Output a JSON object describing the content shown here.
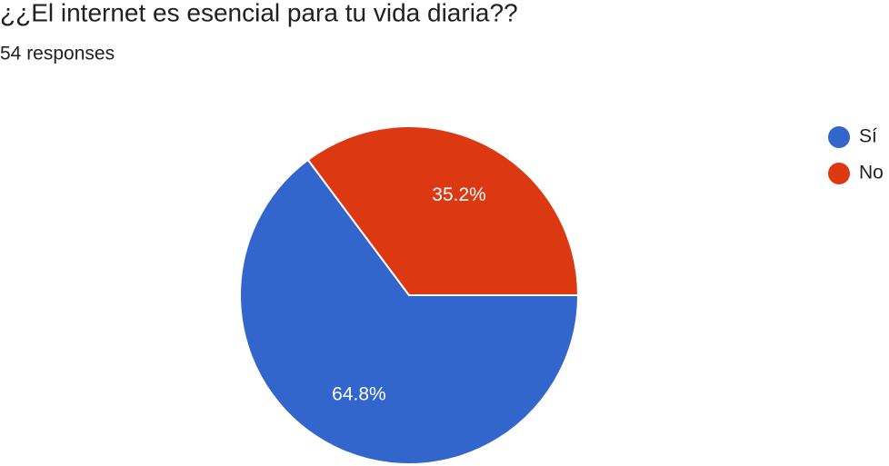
{
  "chart_data": {
    "type": "pie",
    "title": "¿¿El internet es esencial para tu vida diaria??",
    "subtitle": "54 responses",
    "categories": [
      "Sí",
      "No"
    ],
    "values": [
      64.8,
      35.2
    ],
    "value_labels": [
      "64.8%",
      "35.2%"
    ],
    "colors": [
      "#3366cc",
      "#dc3912"
    ],
    "legend": "right"
  }
}
